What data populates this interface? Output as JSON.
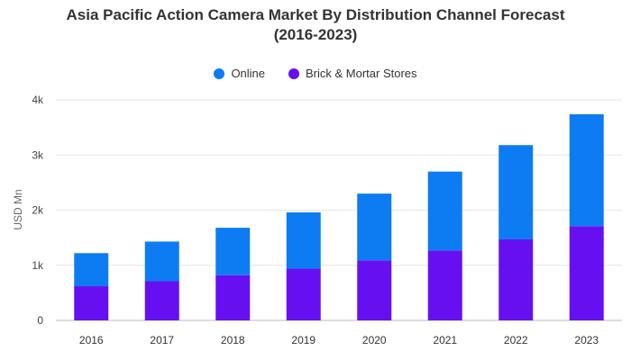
{
  "chart_data": {
    "type": "bar",
    "stacked": true,
    "title_line1": "Asia Pacific Action Camera Market By Distribution Channel Forecast",
    "title_line2": "(2016-2023)",
    "ylabel": "USD Mn",
    "xlabel": "",
    "categories": [
      "2016",
      "2017",
      "2018",
      "2019",
      "2020",
      "2021",
      "2022",
      "2023"
    ],
    "series": [
      {
        "name": "Brick & Mortar Stores",
        "color": "#6610f2",
        "values": [
          620,
          710,
          820,
          940,
          1090,
          1270,
          1470,
          1710
        ]
      },
      {
        "name": "Online",
        "color": "#0d7cf2",
        "values": [
          600,
          720,
          860,
          1020,
          1210,
          1430,
          1710,
          2030
        ]
      }
    ],
    "legend_order": [
      "Online",
      "Brick & Mortar Stores"
    ],
    "ylim": [
      0,
      4000
    ],
    "yticks": [
      0,
      1000,
      2000,
      3000,
      4000
    ],
    "ytick_labels": [
      "0",
      "1k",
      "2k",
      "3k",
      "4k"
    ],
    "grid": true,
    "legend_position": "top-center"
  }
}
